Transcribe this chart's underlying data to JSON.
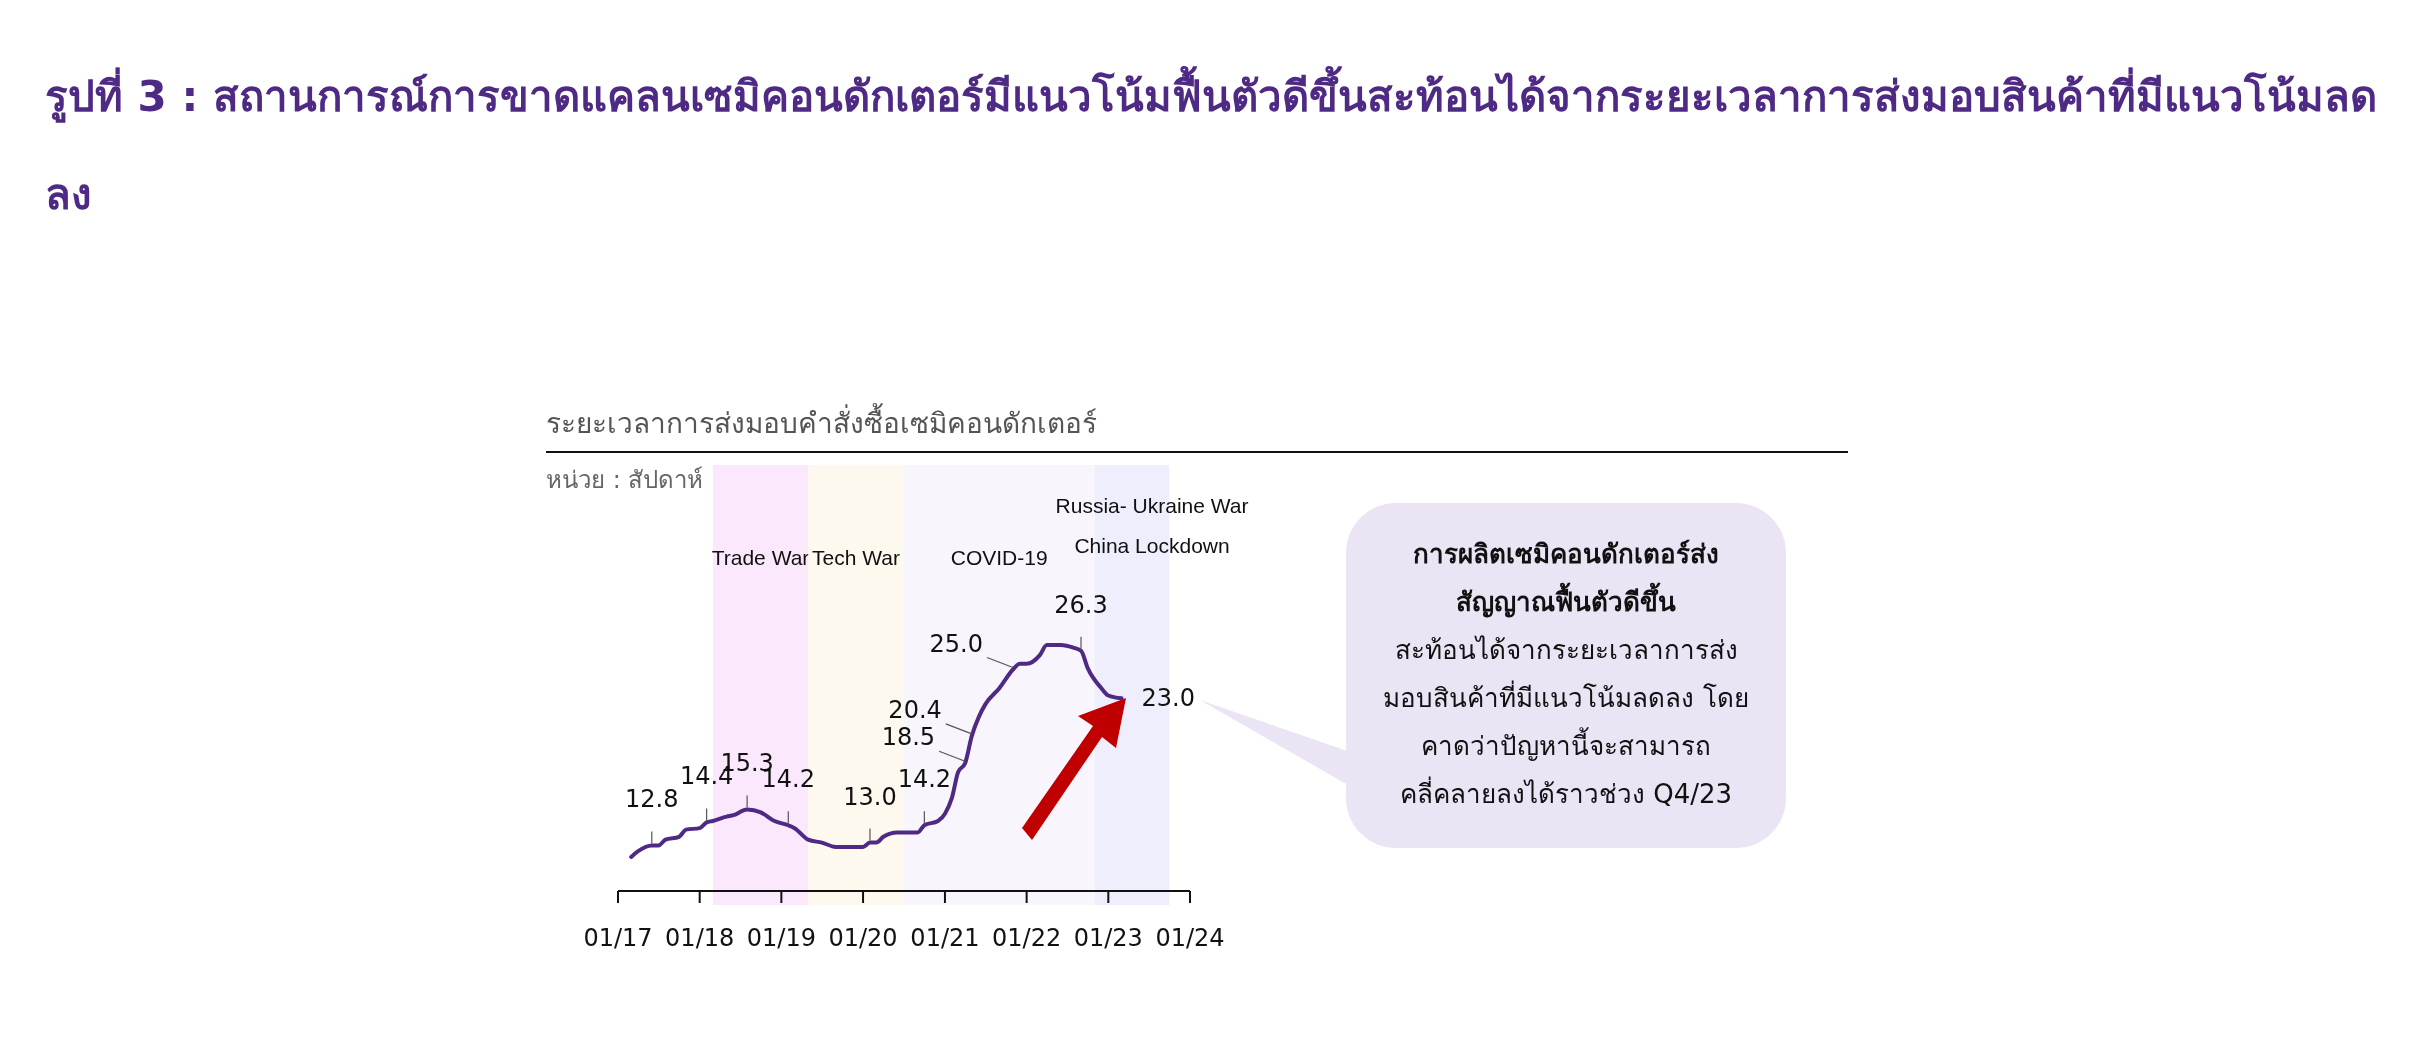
{
  "chart_data": {
    "type": "line",
    "title": "รูปที่ 3 : สถานการณ์การขาดแคลนเซมิคอนดักเตอร์มีแนวโน้มฟื้นตัวดีขึ้นสะท้อนได้จากระยะเวลาการส่งมอบสินค้าที่มีแนวโน้มลดลง",
    "subtitle": "ระยะเวลาการส่งมอบคำสั่งซื้อเซมิคอนดักเตอร์",
    "x": [
      "2017-03",
      "2017-04",
      "2017-06",
      "2017-07",
      "2017-08",
      "2017-10",
      "2017-11",
      "2018-01",
      "2018-02",
      "2018-03",
      "2018-05",
      "2018-06",
      "2018-08",
      "2018-10",
      "2018-12",
      "2019-02",
      "2019-03",
      "2019-05",
      "2019-07",
      "2019-09",
      "2019-11",
      "2020-01",
      "2020-02",
      "2020-03",
      "2020-04",
      "2020-06",
      "2020-08",
      "2020-09",
      "2020-10",
      "2020-12",
      "2021-01",
      "2021-02",
      "2021-03",
      "2021-04",
      "2021-05",
      "2021-06",
      "2021-07",
      "2021-09",
      "2021-11",
      "2021-12",
      "2022-01",
      "2022-03",
      "2022-04",
      "2022-06",
      "2022-08",
      "2022-09",
      "2022-10",
      "2022-12",
      "2023-01",
      "2023-03"
    ],
    "series": [
      {
        "color": "#4e2a84",
        "values": [
          12.0,
          12.4,
          12.8,
          12.8,
          13.2,
          13.4,
          13.9,
          14.0,
          14.4,
          14.5,
          14.8,
          14.9,
          15.3,
          15.1,
          14.5,
          14.2,
          14.0,
          13.2,
          13.0,
          12.7,
          12.7,
          12.7,
          13.0,
          13.0,
          13.4,
          13.7,
          13.7,
          13.7,
          14.2,
          14.5,
          15.0,
          16.1,
          17.9,
          18.5,
          20.4,
          21.7,
          22.6,
          23.7,
          25.0,
          25.4,
          25.4,
          26.0,
          26.7,
          26.7,
          26.5,
          26.3,
          25.1,
          23.7,
          23.2,
          23.0
        ],
        "value_labels": [
          null,
          null,
          "12.8",
          null,
          null,
          null,
          null,
          null,
          "14.4",
          null,
          null,
          null,
          "15.3",
          null,
          null,
          "14.2",
          null,
          null,
          null,
          null,
          null,
          null,
          "13.0",
          null,
          null,
          null,
          null,
          null,
          "14.2",
          null,
          null,
          null,
          null,
          "18.5",
          "20.4",
          null,
          null,
          null,
          "25.0",
          null,
          null,
          null,
          null,
          null,
          null,
          "26.3",
          null,
          null,
          null,
          "23.0"
        ]
      }
    ],
    "xlim": [
      "2017-01",
      "2024-01"
    ],
    "xticks": [
      {
        "value": "2017-01",
        "label": "01/17"
      },
      {
        "value": "2018-01",
        "label": "01/18"
      },
      {
        "value": "2019-01",
        "label": "01/19"
      },
      {
        "value": "2020-01",
        "label": "01/20"
      },
      {
        "value": "2021-01",
        "label": "01/21"
      },
      {
        "value": "2022-01",
        "label": "01/22"
      },
      {
        "value": "2023-01",
        "label": "01/23"
      },
      {
        "value": "2024-01",
        "label": "01/24"
      }
    ],
    "bands": [
      {
        "axis": "x",
        "from": "2018-03",
        "to": "2019-05",
        "label": "Trade War",
        "color": "#fce8fc"
      },
      {
        "axis": "x",
        "from": "2019-05",
        "to": "2020-07",
        "label": "Tech War",
        "color": "#fdf9ee"
      },
      {
        "axis": "x",
        "from": "2020-07",
        "to": "2022-11",
        "label": "COVID-19",
        "color": "#f8f6fc"
      },
      {
        "axis": "x",
        "from": "2022-11",
        "to": "2023-10",
        "label": "Russia- Ukraine War\nChina Lockdown",
        "color": "#eeeefc"
      }
    ],
    "annotations": [
      "หน่วย : สัปดาห์",
      "การผลิตเซมิคอนดักเตอร์ส่งสัญญาณฟื้นตัวดีขึ้น",
      "สะท้อนได้จากระยะเวลาการส่งมอบสินค้าที่มีแนวโน้มลดลง โดยคาดว่าปัญหานี้จะสามารถคลี่คลายลงได้ราวช่วง Q4/23"
    ]
  }
}
